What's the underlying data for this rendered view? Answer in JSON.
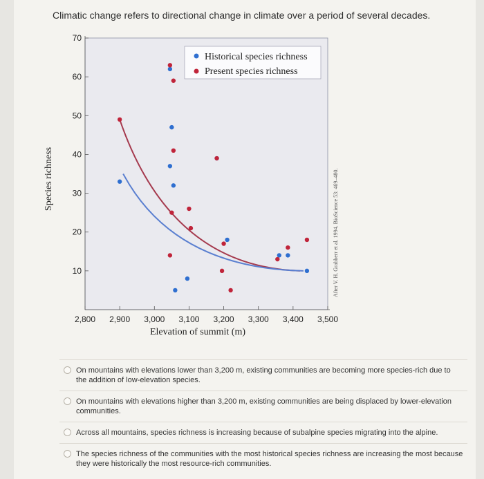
{
  "question": {
    "text": "Climatic change refers to directional change in climate over a period of several decades."
  },
  "chart_data": {
    "type": "scatter",
    "xlabel": "Elevation of summit (m)",
    "ylabel": "Species richness",
    "x_ticks": [
      "2,800",
      "2,900",
      "3,000",
      "3,100",
      "3,200",
      "3,300",
      "3,400",
      "3,500"
    ],
    "y_ticks": [
      "10",
      "20",
      "30",
      "40",
      "50",
      "60",
      "70"
    ],
    "xlim": [
      2800,
      3500
    ],
    "ylim": [
      0,
      70
    ],
    "legend": {
      "placement": "top-right",
      "entries": [
        "Historical species richness",
        "Present species richness"
      ]
    },
    "credit": "After V. H. Grabherr et al. 1994. BioScience 53: 469–480.",
    "colors": {
      "historical": "#2f6fd0",
      "present": "#c0243a",
      "historical_curve": "#5a7fd0",
      "present_curve": "#a53a4e"
    },
    "series": [
      {
        "name": "Historical species richness",
        "points": [
          [
            2900,
            33
          ],
          [
            3045,
            62
          ],
          [
            3050,
            47
          ],
          [
            3055,
            32
          ],
          [
            3045,
            37
          ],
          [
            3060,
            5
          ],
          [
            3095,
            8
          ],
          [
            3180,
            39
          ],
          [
            3210,
            18
          ],
          [
            3360,
            14
          ],
          [
            3385,
            14
          ],
          [
            3440,
            10
          ]
        ]
      },
      {
        "name": "Present species richness",
        "points": [
          [
            2900,
            49
          ],
          [
            3045,
            63
          ],
          [
            3055,
            59
          ],
          [
            3055,
            41
          ],
          [
            3050,
            25
          ],
          [
            3045,
            14
          ],
          [
            3100,
            26
          ],
          [
            3105,
            21
          ],
          [
            3180,
            39
          ],
          [
            3200,
            17
          ],
          [
            3195,
            10
          ],
          [
            3220,
            5
          ],
          [
            3355,
            13
          ],
          [
            3385,
            16
          ],
          [
            3440,
            18
          ]
        ]
      }
    ],
    "trend_lines": [
      {
        "series": "Present species richness",
        "start": [
          2900,
          49
        ],
        "end": [
          3420,
          10
        ]
      },
      {
        "series": "Historical species richness",
        "start": [
          2910,
          35
        ],
        "end": [
          3430,
          10
        ]
      }
    ]
  },
  "options": [
    {
      "label": "On mountains with elevations lower than 3,200 m, existing communities are becoming more species-rich due to the addition of low-elevation species."
    },
    {
      "label": "On mountains with elevations higher than 3,200 m, existing communities are being displaced by lower-elevation communities."
    },
    {
      "label": "Across all mountains, species richness is increasing because of subalpine species migrating into the alpine."
    },
    {
      "label": "The species richness of the communities with the most historical species richness are increasing the most because they were historically the most resource-rich communities."
    }
  ]
}
